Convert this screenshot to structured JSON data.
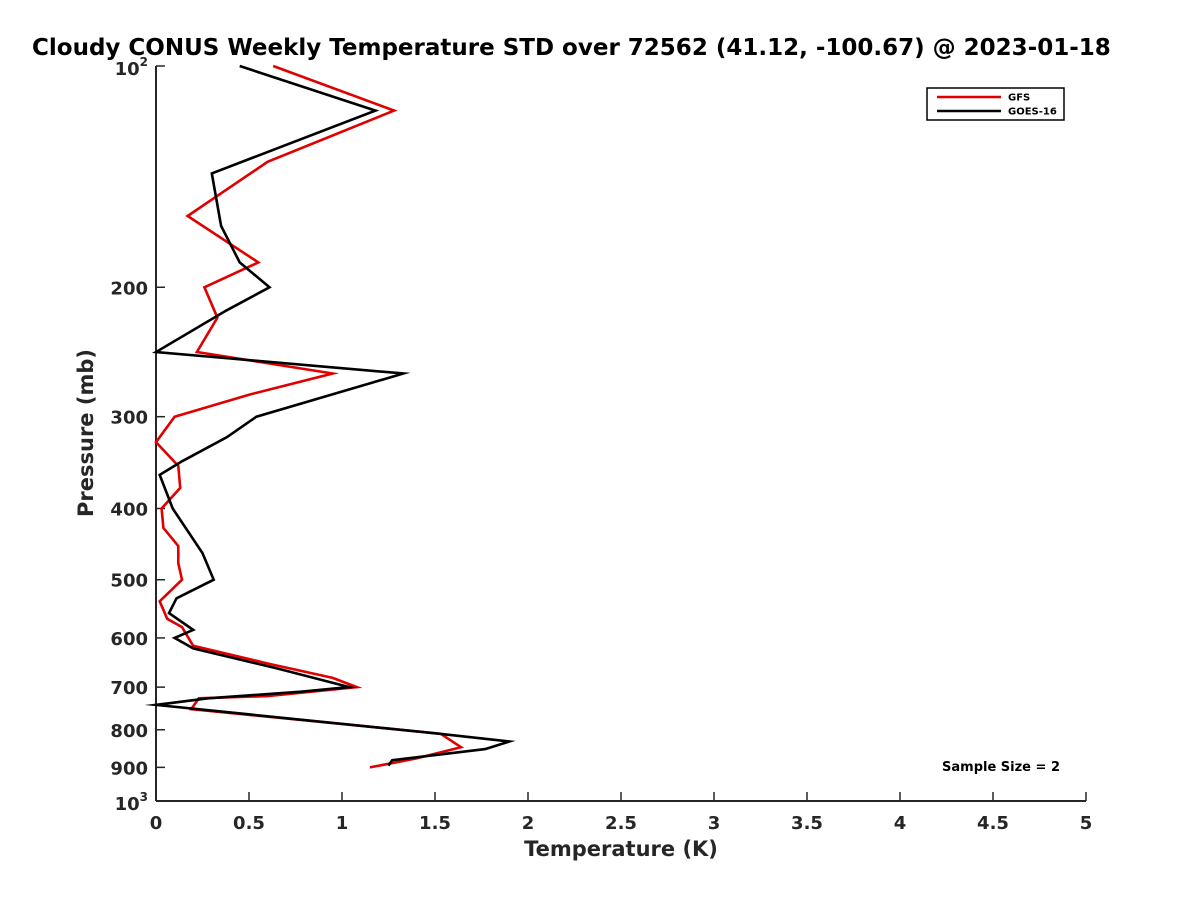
{
  "chart_data": {
    "type": "line",
    "title": "Cloudy CONUS Weekly Temperature STD over 72562 (41.12, -100.67) @ 2023-01-18",
    "xlabel": "Temperature (K)",
    "ylabel": "Pressure (mb)",
    "xlim": [
      0,
      5
    ],
    "ylim": [
      100,
      1000
    ],
    "y_scale": "log",
    "y_reversed": true,
    "x_ticks": [
      "0",
      "0.5",
      "1",
      "1.5",
      "2",
      "2.5",
      "3",
      "3.5",
      "4",
      "4.5",
      "5"
    ],
    "y_ticks": [
      {
        "value": 100,
        "base": "10",
        "exp": "2"
      },
      {
        "value": 200,
        "label": "200"
      },
      {
        "value": 300,
        "label": "300"
      },
      {
        "value": 400,
        "label": "400"
      },
      {
        "value": 500,
        "label": "500"
      },
      {
        "value": 600,
        "label": "600"
      },
      {
        "value": 700,
        "label": "700"
      },
      {
        "value": 800,
        "label": "800"
      },
      {
        "value": 900,
        "label": "900"
      },
      {
        "value": 1000,
        "base": "10",
        "exp": "3"
      }
    ],
    "legend_position": "top-right",
    "annotation": "Sample Size = 2",
    "grid": false,
    "series": [
      {
        "name": "GFS",
        "color": "#e00000",
        "points": [
          [
            0.63,
            100
          ],
          [
            1.28,
            115
          ],
          [
            0.6,
            135
          ],
          [
            0.17,
            160
          ],
          [
            0.55,
            185
          ],
          [
            0.26,
            200
          ],
          [
            0.33,
            220
          ],
          [
            0.22,
            245
          ],
          [
            0.95,
            262
          ],
          [
            0.5,
            280
          ],
          [
            0.1,
            300
          ],
          [
            0.0,
            325
          ],
          [
            0.12,
            350
          ],
          [
            0.13,
            375
          ],
          [
            0.03,
            400
          ],
          [
            0.04,
            425
          ],
          [
            0.12,
            450
          ],
          [
            0.12,
            475
          ],
          [
            0.14,
            500
          ],
          [
            0.02,
            535
          ],
          [
            0.06,
            565
          ],
          [
            0.14,
            580
          ],
          [
            0.2,
            615
          ],
          [
            0.6,
            650
          ],
          [
            0.95,
            680
          ],
          [
            1.08,
            700
          ],
          [
            0.6,
            720
          ],
          [
            0.23,
            725
          ],
          [
            0.19,
            750
          ],
          [
            1.53,
            810
          ],
          [
            1.64,
            845
          ],
          [
            1.4,
            875
          ],
          [
            1.15,
            900
          ]
        ]
      },
      {
        "name": "GOES-16",
        "color": "#000000",
        "points": [
          [
            0.45,
            100
          ],
          [
            1.18,
            115
          ],
          [
            0.3,
            140
          ],
          [
            0.35,
            165
          ],
          [
            0.45,
            185
          ],
          [
            0.61,
            200
          ],
          [
            0.38,
            215
          ],
          [
            0.0,
            245
          ],
          [
            0.4,
            250
          ],
          [
            1.33,
            262
          ],
          [
            0.54,
            300
          ],
          [
            0.38,
            320
          ],
          [
            0.14,
            345
          ],
          [
            0.02,
            360
          ],
          [
            0.09,
            400
          ],
          [
            0.25,
            460
          ],
          [
            0.31,
            500
          ],
          [
            0.11,
            530
          ],
          [
            0.07,
            555
          ],
          [
            0.2,
            585
          ],
          [
            0.1,
            600
          ],
          [
            0.2,
            620
          ],
          [
            0.65,
            660
          ],
          [
            1.04,
            700
          ],
          [
            0.78,
            710
          ],
          [
            0.28,
            725
          ],
          [
            0.0,
            740
          ],
          [
            1.52,
            810
          ],
          [
            1.9,
            830
          ],
          [
            1.77,
            850
          ],
          [
            1.27,
            880
          ],
          [
            1.25,
            895
          ]
        ]
      }
    ]
  }
}
